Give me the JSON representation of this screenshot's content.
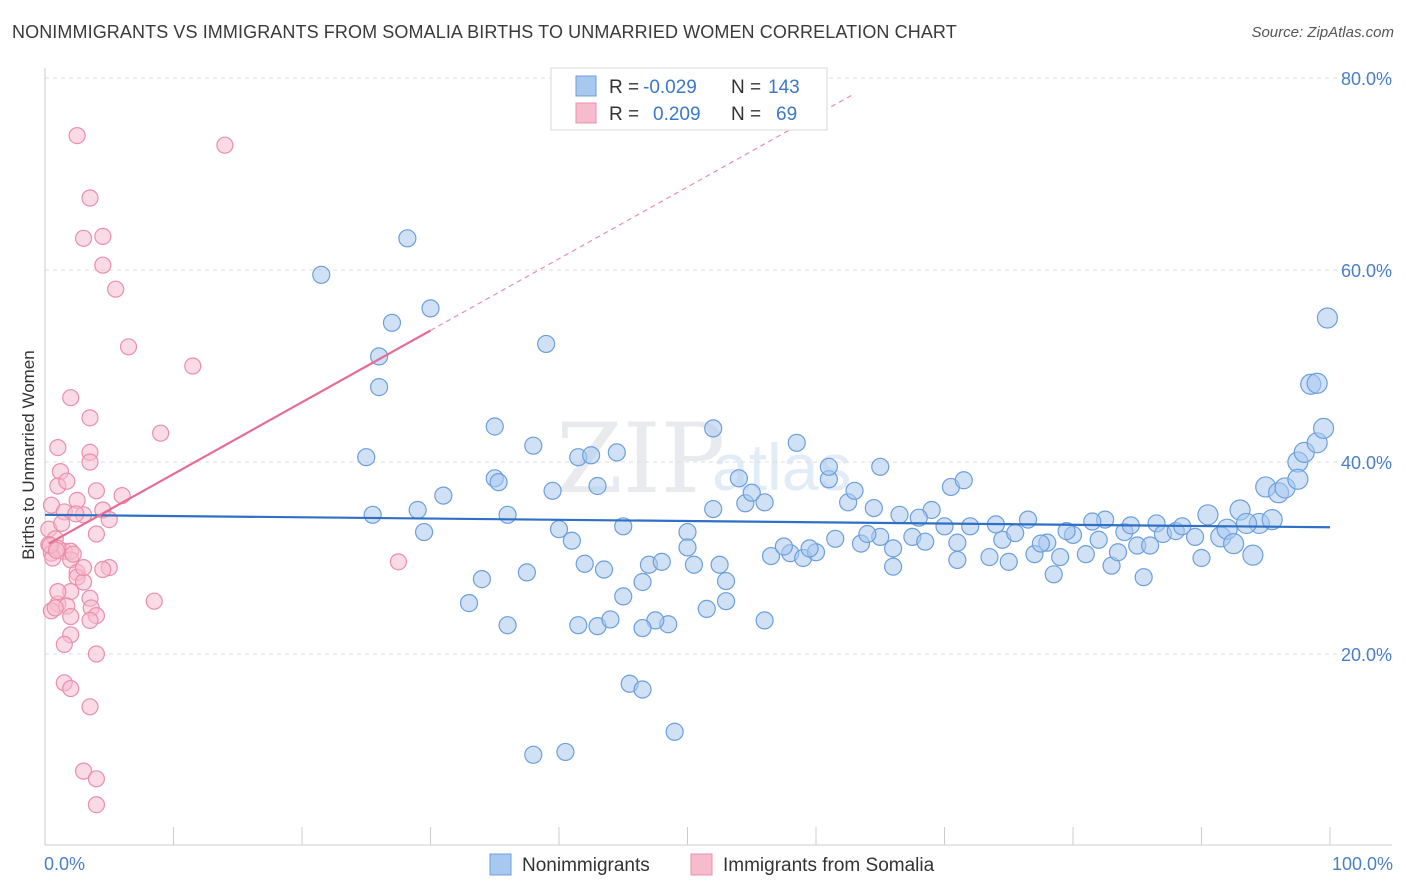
{
  "title": "NONIMMIGRANTS VS IMMIGRANTS FROM SOMALIA BIRTHS TO UNMARRIED WOMEN CORRELATION CHART",
  "source": "Source: ZipAtlas.com",
  "watermark": {
    "zip": "ZIP",
    "atlas": "atlas"
  },
  "colors": {
    "blue_fill": "#a9c8ee",
    "blue_stroke": "#6c9fdc",
    "blue_line": "#2f6fc6",
    "pink_fill": "#f6bccd",
    "pink_stroke": "#ea8fab",
    "pink_line": "#e46d95",
    "grid": "#dcdcdc",
    "tick_label": "#4a7fc8"
  },
  "legend": {
    "rows": [
      {
        "r_label": "R =",
        "r_value": "-0.029",
        "n_label": "N =",
        "n_value": "143"
      },
      {
        "r_label": "R =",
        "r_value": "0.209",
        "n_label": "N =",
        "n_value": "69"
      }
    ]
  },
  "bottom_legend": [
    "Nonimmigrants",
    "Immigrants from Somalia"
  ],
  "chart_data": {
    "type": "scatter",
    "title": "NONIMMIGRANTS VS IMMIGRANTS FROM SOMALIA BIRTHS TO UNMARRIED WOMEN CORRELATION CHART",
    "xlabel": "",
    "ylabel": "Births to Unmarried Women",
    "xlim": [
      0,
      100
    ],
    "ylim": [
      0,
      80
    ],
    "x_tick_labels": [
      "0.0%",
      "100.0%"
    ],
    "y_tick_labels": [
      "20.0%",
      "40.0%",
      "60.0%",
      "80.0%"
    ],
    "y_ticks": [
      20,
      40,
      60,
      80
    ],
    "grid": true,
    "legend_position": "top-center",
    "series": [
      {
        "name": "Nonimmigrants",
        "r": -0.029,
        "n": 143,
        "trend": {
          "x": [
            0,
            100
          ],
          "y": [
            34.5,
            33.2
          ]
        },
        "points": [
          [
            21.5,
            59.5
          ],
          [
            28.2,
            63.3
          ],
          [
            27.0,
            54.5
          ],
          [
            26.0,
            51.0
          ],
          [
            30.0,
            56.0
          ],
          [
            26.0,
            47.8
          ],
          [
            39.0,
            52.3
          ],
          [
            25.5,
            34.5
          ],
          [
            29.0,
            35.0
          ],
          [
            31.0,
            36.5
          ],
          [
            29.5,
            32.7
          ],
          [
            25.0,
            40.5
          ],
          [
            35.0,
            43.7
          ],
          [
            38.0,
            41.7
          ],
          [
            35.0,
            38.3
          ],
          [
            35.3,
            37.9
          ],
          [
            36.0,
            34.5
          ],
          [
            39.5,
            37.0
          ],
          [
            40.0,
            33.0
          ],
          [
            41.0,
            31.8
          ],
          [
            41.5,
            40.5
          ],
          [
            42.5,
            40.7
          ],
          [
            44.5,
            41.0
          ],
          [
            43.0,
            37.5
          ],
          [
            45.0,
            33.3
          ],
          [
            42.0,
            29.4
          ],
          [
            37.5,
            28.5
          ],
          [
            34.0,
            27.8
          ],
          [
            33.0,
            25.3
          ],
          [
            43.5,
            28.8
          ],
          [
            47.0,
            29.3
          ],
          [
            48.0,
            29.6
          ],
          [
            46.5,
            27.5
          ],
          [
            50.0,
            32.7
          ],
          [
            50.5,
            29.3
          ],
          [
            52.0,
            35.1
          ],
          [
            52.5,
            29.3
          ],
          [
            53.0,
            27.6
          ],
          [
            54.5,
            35.7
          ],
          [
            55.0,
            36.8
          ],
          [
            56.0,
            35.8
          ],
          [
            56.5,
            30.2
          ],
          [
            54.0,
            38.3
          ],
          [
            52.0,
            43.5
          ],
          [
            58.5,
            42.0
          ],
          [
            58.0,
            30.5
          ],
          [
            59.0,
            30.0
          ],
          [
            60.0,
            30.6
          ],
          [
            61.0,
            38.2
          ],
          [
            61.0,
            39.5
          ],
          [
            62.5,
            35.8
          ],
          [
            63.0,
            37.0
          ],
          [
            63.5,
            31.5
          ],
          [
            64.5,
            35.2
          ],
          [
            65.0,
            32.2
          ],
          [
            65.0,
            39.5
          ],
          [
            66.0,
            31.0
          ],
          [
            66.5,
            34.5
          ],
          [
            67.5,
            32.2
          ],
          [
            68.5,
            31.7
          ],
          [
            69.0,
            35.0
          ],
          [
            70.0,
            33.3
          ],
          [
            70.5,
            37.4
          ],
          [
            71.5,
            38.1
          ],
          [
            71.0,
            29.8
          ],
          [
            72.0,
            33.3
          ],
          [
            73.5,
            30.1
          ],
          [
            74.5,
            31.9
          ],
          [
            75.0,
            29.6
          ],
          [
            75.5,
            32.6
          ],
          [
            76.5,
            34.0
          ],
          [
            77.0,
            30.4
          ],
          [
            78.0,
            31.6
          ],
          [
            78.5,
            28.3
          ],
          [
            79.0,
            30.1
          ],
          [
            80.0,
            32.4
          ],
          [
            81.0,
            30.4
          ],
          [
            82.0,
            31.9
          ],
          [
            82.5,
            34.0
          ],
          [
            83.0,
            29.2
          ],
          [
            83.5,
            30.6
          ],
          [
            84.0,
            32.7
          ],
          [
            85.0,
            31.3
          ],
          [
            85.5,
            28.0
          ],
          [
            86.0,
            31.3
          ],
          [
            86.5,
            33.6
          ],
          [
            87.0,
            32.5
          ],
          [
            88.0,
            32.8
          ],
          [
            89.5,
            32.2
          ],
          [
            90.0,
            30.0
          ],
          [
            90.5,
            34.5
          ],
          [
            91.5,
            32.2
          ],
          [
            92.0,
            33.0
          ],
          [
            93.0,
            35.0
          ],
          [
            94.0,
            30.3
          ],
          [
            94.5,
            33.6
          ],
          [
            95.0,
            37.4
          ],
          [
            96.0,
            36.8
          ],
          [
            96.5,
            37.3
          ],
          [
            97.5,
            40.0
          ],
          [
            98.0,
            41.0
          ],
          [
            99.0,
            42.0
          ],
          [
            99.5,
            43.5
          ],
          [
            98.5,
            48.1
          ],
          [
            99.0,
            48.2
          ],
          [
            99.8,
            55.0
          ],
          [
            97.5,
            38.2
          ],
          [
            95.5,
            34.0
          ],
          [
            93.5,
            33.6
          ],
          [
            92.5,
            31.5
          ],
          [
            88.5,
            33.3
          ],
          [
            84.5,
            33.4
          ],
          [
            81.5,
            33.8
          ],
          [
            79.5,
            32.8
          ],
          [
            77.5,
            31.5
          ],
          [
            74.0,
            33.5
          ],
          [
            71.0,
            31.6
          ],
          [
            68.0,
            34.2
          ],
          [
            66.0,
            29.1
          ],
          [
            64.0,
            32.5
          ],
          [
            61.5,
            32.0
          ],
          [
            59.5,
            31.0
          ],
          [
            57.5,
            31.2
          ],
          [
            56.0,
            23.5
          ],
          [
            53.0,
            25.5
          ],
          [
            51.5,
            24.7
          ],
          [
            50.0,
            31.1
          ],
          [
            48.5,
            23.1
          ],
          [
            47.5,
            23.5
          ],
          [
            46.5,
            22.7
          ],
          [
            45.5,
            16.9
          ],
          [
            43.0,
            22.9
          ],
          [
            46.5,
            16.3
          ],
          [
            49.0,
            11.9
          ],
          [
            40.5,
            9.8
          ],
          [
            38.0,
            9.5
          ],
          [
            44.0,
            23.6
          ],
          [
            41.5,
            23.0
          ],
          [
            36.0,
            23.0
          ],
          [
            45.0,
            26.0
          ]
        ]
      },
      {
        "name": "Immigrants from Somalia",
        "r": 0.209,
        "n": 69,
        "trend": {
          "x": [
            0.3,
            30.0
          ],
          "y": [
            31.5,
            53.7
          ]
        },
        "points": [
          [
            2.5,
            74.0
          ],
          [
            14.0,
            73.0
          ],
          [
            3.5,
            67.5
          ],
          [
            3.0,
            63.3
          ],
          [
            4.5,
            63.5
          ],
          [
            4.5,
            60.5
          ],
          [
            5.5,
            58.0
          ],
          [
            6.5,
            52.0
          ],
          [
            11.5,
            50.0
          ],
          [
            2.0,
            46.7
          ],
          [
            3.5,
            44.6
          ],
          [
            9.0,
            43.0
          ],
          [
            1.0,
            41.5
          ],
          [
            3.5,
            41.0
          ],
          [
            3.5,
            40.0
          ],
          [
            1.2,
            39.0
          ],
          [
            1.0,
            37.5
          ],
          [
            4.0,
            37.0
          ],
          [
            6.0,
            36.5
          ],
          [
            2.5,
            36.0
          ],
          [
            0.5,
            35.5
          ],
          [
            1.5,
            34.8
          ],
          [
            3.0,
            34.5
          ],
          [
            4.5,
            35.0
          ],
          [
            5.0,
            34.0
          ],
          [
            0.3,
            33.0
          ],
          [
            0.8,
            32.0
          ],
          [
            4.0,
            32.5
          ],
          [
            0.3,
            31.4
          ],
          [
            0.5,
            30.5
          ],
          [
            1.5,
            30.7
          ],
          [
            2.0,
            30.7
          ],
          [
            1.0,
            31.0
          ],
          [
            0.6,
            30.0
          ],
          [
            2.0,
            29.8
          ],
          [
            2.5,
            28.5
          ],
          [
            5.0,
            29.0
          ],
          [
            4.5,
            28.8
          ],
          [
            2.5,
            28.0
          ],
          [
            3.0,
            27.5
          ],
          [
            2.0,
            26.5
          ],
          [
            3.5,
            25.8
          ],
          [
            1.0,
            25.2
          ],
          [
            0.5,
            24.5
          ],
          [
            1.7,
            25.0
          ],
          [
            3.6,
            24.8
          ],
          [
            4.0,
            24.0
          ],
          [
            2.0,
            23.9
          ],
          [
            3.5,
            23.5
          ],
          [
            2.0,
            22.0
          ],
          [
            1.5,
            21.0
          ],
          [
            4.0,
            20.0
          ],
          [
            1.5,
            17.0
          ],
          [
            2.0,
            16.4
          ],
          [
            3.5,
            14.5
          ],
          [
            3.0,
            7.8
          ],
          [
            4.0,
            7.0
          ],
          [
            4.0,
            4.3
          ],
          [
            8.5,
            25.5
          ],
          [
            27.5,
            29.6
          ],
          [
            1.0,
            26.5
          ],
          [
            0.8,
            24.8
          ],
          [
            2.2,
            30.4
          ],
          [
            1.7,
            38.0
          ],
          [
            3.0,
            29.0
          ],
          [
            0.4,
            31.3
          ],
          [
            0.9,
            30.8
          ],
          [
            2.4,
            34.6
          ],
          [
            1.3,
            33.6
          ]
        ]
      }
    ]
  }
}
